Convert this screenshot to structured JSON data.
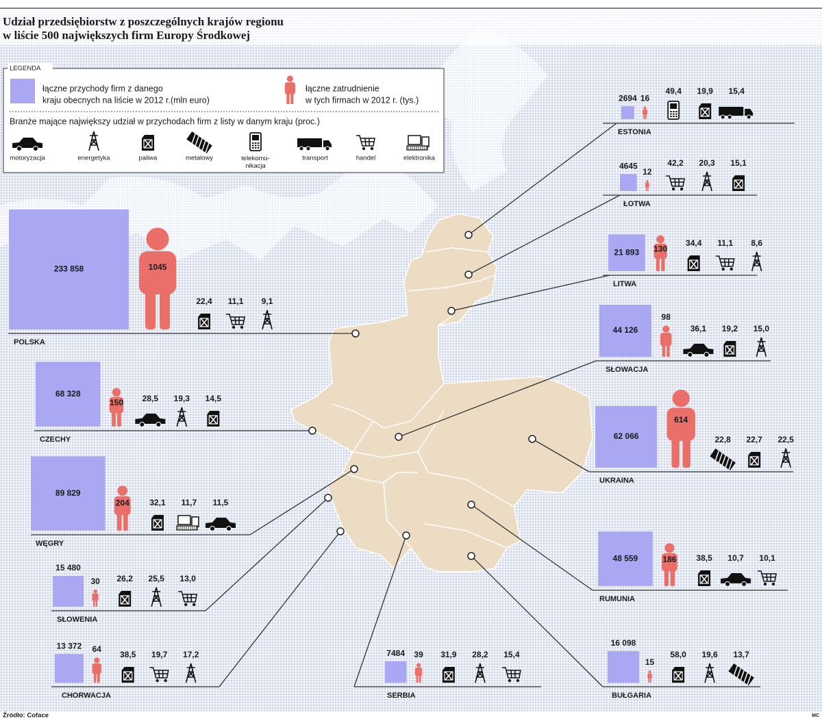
{
  "title": [
    "Udział przedsiębiorstw z poszczególnych krajów regionu",
    "w liście 500 największych firm Europy Środkowej"
  ],
  "legend": {
    "title": "LEGENDA",
    "revenue": [
      "łączne przychody firm z danego",
      "kraju obecnych na liście w 2012 r.(mln euro)"
    ],
    "employment": [
      "łączne zatrudnienie",
      "w tych firmach w 2012 r. (tys.)"
    ],
    "industries_title": "Branże mające największy udział w przychodach firm z listy w danym kraju (proc.)",
    "industries": [
      "motoryzacja",
      "energetyka",
      "paliwa",
      "metalowy",
      "telekomu-\nnikacja",
      "transport",
      "handel",
      "elektronika"
    ]
  },
  "countries": [
    {
      "name": "ESTONIA",
      "revenue": 2694,
      "revenue_label": "2694",
      "employment": 16,
      "industries": [
        {
          "industry": "telekomu-\nnikacja",
          "share": "49,4"
        },
        {
          "industry": "paliwa",
          "share": "19,9"
        },
        {
          "industry": "transport",
          "share": "15,4"
        }
      ]
    },
    {
      "name": "ŁOTWA",
      "revenue": 4645,
      "revenue_label": "4645",
      "employment": 12,
      "industries": [
        {
          "industry": "handel",
          "share": "42,2"
        },
        {
          "industry": "energetyka",
          "share": "20,3"
        },
        {
          "industry": "paliwa",
          "share": "15,1"
        }
      ]
    },
    {
      "name": "LITWA",
      "revenue": 21893,
      "revenue_label": "21 893",
      "employment": 130,
      "industries": [
        {
          "industry": "paliwa",
          "share": "34,4"
        },
        {
          "industry": "handel",
          "share": "11,1"
        },
        {
          "industry": "energetyka",
          "share": "8,6"
        }
      ]
    },
    {
      "name": "POLSKA",
      "revenue": 233858,
      "revenue_label": "233 858",
      "employment": 1045,
      "industries": [
        {
          "industry": "paliwa",
          "share": "22,4"
        },
        {
          "industry": "handel",
          "share": "11,1"
        },
        {
          "industry": "energetyka",
          "share": "9,1"
        }
      ]
    },
    {
      "name": "SŁOWACJA",
      "revenue": 44126,
      "revenue_label": "44 126",
      "employment": 98,
      "industries": [
        {
          "industry": "motoryzacja",
          "share": "36,1"
        },
        {
          "industry": "paliwa",
          "share": "19,2"
        },
        {
          "industry": "energetyka",
          "share": "15,0"
        }
      ]
    },
    {
      "name": "CZECHY",
      "revenue": 68328,
      "revenue_label": "68 328",
      "employment": 150,
      "industries": [
        {
          "industry": "motoryzacja",
          "share": "28,5"
        },
        {
          "industry": "energetyka",
          "share": "19,3"
        },
        {
          "industry": "paliwa",
          "share": "14,5"
        }
      ]
    },
    {
      "name": "UKRAINA",
      "revenue": 62066,
      "revenue_label": "62 066",
      "employment": 614,
      "industries": [
        {
          "industry": "metalowy",
          "share": "22,8"
        },
        {
          "industry": "paliwa",
          "share": "22,7"
        },
        {
          "industry": "energetyka",
          "share": "22,5"
        }
      ]
    },
    {
      "name": "WĘGRY",
      "revenue": 89829,
      "revenue_label": "89 829",
      "employment": 204,
      "industries": [
        {
          "industry": "paliwa",
          "share": "32,1"
        },
        {
          "industry": "elektronika",
          "share": "11,7"
        },
        {
          "industry": "motoryzacja",
          "share": "11,5"
        }
      ]
    },
    {
      "name": "RUMUNIA",
      "revenue": 48559,
      "revenue_label": "48 559",
      "employment": 186,
      "industries": [
        {
          "industry": "paliwa",
          "share": "38,5"
        },
        {
          "industry": "motoryzacja",
          "share": "10,7"
        },
        {
          "industry": "handel",
          "share": "10,1"
        }
      ]
    },
    {
      "name": "SŁOWENIA",
      "revenue": 15480,
      "revenue_label": "15 480",
      "employment": 30,
      "industries": [
        {
          "industry": "paliwa",
          "share": "26,2"
        },
        {
          "industry": "energetyka",
          "share": "25,5"
        },
        {
          "industry": "handel",
          "share": "13,0"
        }
      ]
    },
    {
      "name": "CHORWACJA",
      "revenue": 13372,
      "revenue_label": "13 372",
      "employment": 64,
      "industries": [
        {
          "industry": "paliwa",
          "share": "38,5"
        },
        {
          "industry": "handel",
          "share": "19,7"
        },
        {
          "industry": "energetyka",
          "share": "17,2"
        }
      ]
    },
    {
      "name": "SERBIA",
      "revenue": 7484,
      "revenue_label": "7484",
      "employment": 39,
      "industries": [
        {
          "industry": "paliwa",
          "share": "31,9"
        },
        {
          "industry": "energetyka",
          "share": "28,2"
        },
        {
          "industry": "handel",
          "share": "15,4"
        }
      ]
    },
    {
      "name": "BUŁGARIA",
      "revenue": 16098,
      "revenue_label": "16 098",
      "employment": 15,
      "industries": [
        {
          "industry": "paliwa",
          "share": "58,0"
        },
        {
          "industry": "energetyka",
          "share": "19,6"
        },
        {
          "industry": "metalowy",
          "share": "13,7"
        }
      ]
    }
  ],
  "source": "Źródło: Coface",
  "credit": "MC"
}
